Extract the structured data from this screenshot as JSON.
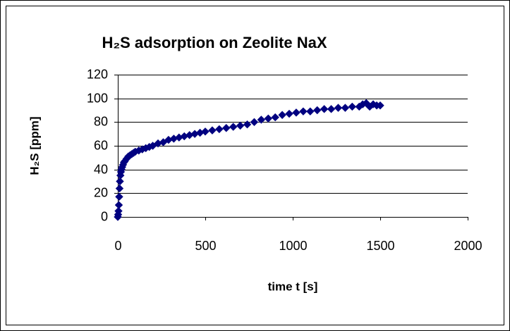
{
  "chart_data": {
    "type": "scatter",
    "title": "H₂S adsorption on Zeolite NaX",
    "x_label": "time   t [s]",
    "y_label": "H₂S [ppm]",
    "x": [
      0,
      2,
      4,
      6,
      8,
      10,
      12,
      15,
      18,
      21,
      25,
      30,
      35,
      40,
      50,
      60,
      70,
      80,
      90,
      100,
      120,
      140,
      160,
      180,
      200,
      230,
      260,
      290,
      320,
      350,
      380,
      410,
      440,
      470,
      500,
      540,
      580,
      620,
      660,
      700,
      740,
      780,
      820,
      860,
      900,
      940,
      980,
      1020,
      1060,
      1100,
      1140,
      1180,
      1220,
      1260,
      1300,
      1340,
      1380,
      1400,
      1420,
      1440,
      1460,
      1480,
      1500
    ],
    "values": [
      0,
      2,
      5,
      10,
      17,
      24,
      30,
      35,
      38,
      40,
      42,
      44,
      46,
      47,
      49,
      51,
      52,
      53,
      54,
      55,
      56,
      57,
      58,
      59,
      60,
      62,
      63,
      65,
      66,
      67,
      68,
      69,
      70,
      71,
      72,
      73,
      74,
      75,
      76,
      77,
      78,
      80,
      82,
      83,
      84,
      86,
      87,
      88,
      89,
      89,
      90,
      91,
      91,
      92,
      92,
      93,
      93,
      95,
      96,
      93,
      95,
      94,
      94
    ],
    "color": "#000080",
    "xlim": [
      0,
      2000
    ],
    "xticks": [
      0,
      500,
      1000,
      1500,
      2000
    ],
    "ylim": [
      0,
      120
    ],
    "yticks": [
      0,
      20,
      40,
      60,
      80,
      100,
      120
    ],
    "grid": true
  }
}
